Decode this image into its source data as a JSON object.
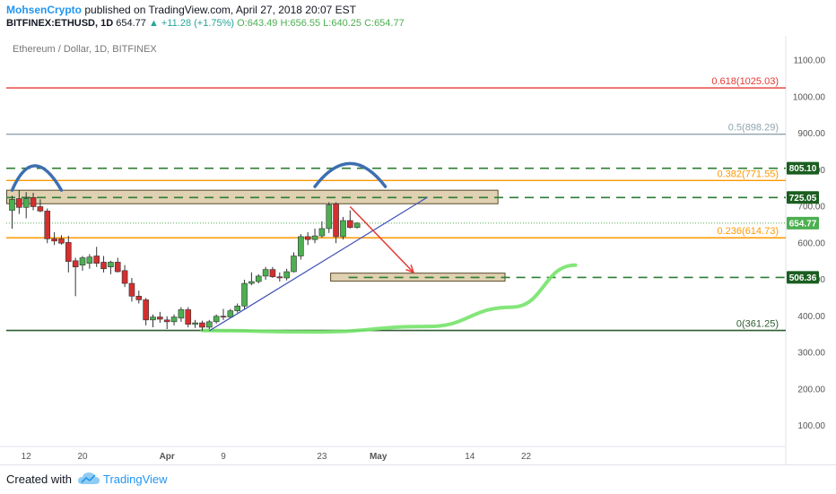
{
  "header": {
    "author": "MohsenCrypto",
    "published_text": "published on TradingView.com, April 27, 2018 20:07 EST",
    "symbol": "BITFINEX:ETHUSD, 1D",
    "last": "654.77",
    "change": "+11.28 (+1.75%)",
    "open": "O:643.49",
    "high": "H:656.55",
    "low": "L:640.25",
    "close": "C:654.77"
  },
  "chart_data": {
    "type": "candlestick",
    "title": "Ethereum / Dollar, 1D, BITFINEX",
    "y_ticks": [
      100,
      200,
      300,
      400,
      500,
      600,
      700,
      800,
      900,
      1000,
      1100
    ],
    "y_tick_labels": [
      "100.00",
      "200.00",
      "300.00",
      "400.00",
      "500.00",
      "600.00",
      "700.00",
      "800.00",
      "900.00",
      "1000.00",
      "1100.00"
    ],
    "ylim": [
      75,
      1175
    ],
    "x_range": [
      "2018-03-10",
      "2018-05-29"
    ],
    "x_ticks": [
      {
        "date": "2018-03-12",
        "label": "12"
      },
      {
        "date": "2018-03-20",
        "label": "20"
      },
      {
        "date": "2018-04-01",
        "label": "Apr"
      },
      {
        "date": "2018-04-09",
        "label": "9"
      },
      {
        "date": "2018-04-23",
        "label": "23"
      },
      {
        "date": "2018-05-01",
        "label": "May"
      },
      {
        "date": "2018-05-14",
        "label": "14"
      },
      {
        "date": "2018-05-22",
        "label": "22"
      }
    ],
    "candles": [
      {
        "d": "2018-03-10",
        "o": 690,
        "h": 730,
        "l": 640,
        "c": 720
      },
      {
        "d": "2018-03-11",
        "o": 722,
        "h": 745,
        "l": 680,
        "c": 698
      },
      {
        "d": "2018-03-12",
        "o": 698,
        "h": 740,
        "l": 668,
        "c": 722
      },
      {
        "d": "2018-03-13",
        "o": 725,
        "h": 738,
        "l": 690,
        "c": 700
      },
      {
        "d": "2018-03-14",
        "o": 700,
        "h": 720,
        "l": 685,
        "c": 688
      },
      {
        "d": "2018-03-15",
        "o": 688,
        "h": 695,
        "l": 600,
        "c": 612
      },
      {
        "d": "2018-03-16",
        "o": 612,
        "h": 630,
        "l": 595,
        "c": 606
      },
      {
        "d": "2018-03-17",
        "o": 612,
        "h": 622,
        "l": 596,
        "c": 600
      },
      {
        "d": "2018-03-18",
        "o": 602,
        "h": 620,
        "l": 520,
        "c": 550
      },
      {
        "d": "2018-03-19",
        "o": 552,
        "h": 560,
        "l": 455,
        "c": 535
      },
      {
        "d": "2018-03-20",
        "o": 540,
        "h": 565,
        "l": 525,
        "c": 560
      },
      {
        "d": "2018-03-21",
        "o": 545,
        "h": 570,
        "l": 530,
        "c": 562
      },
      {
        "d": "2018-03-22",
        "o": 565,
        "h": 590,
        "l": 535,
        "c": 545
      },
      {
        "d": "2018-03-23",
        "o": 548,
        "h": 565,
        "l": 520,
        "c": 530
      },
      {
        "d": "2018-03-24",
        "o": 535,
        "h": 552,
        "l": 515,
        "c": 548
      },
      {
        "d": "2018-03-25",
        "o": 548,
        "h": 560,
        "l": 520,
        "c": 522
      },
      {
        "d": "2018-03-26",
        "o": 525,
        "h": 540,
        "l": 480,
        "c": 490
      },
      {
        "d": "2018-03-27",
        "o": 490,
        "h": 505,
        "l": 440,
        "c": 455
      },
      {
        "d": "2018-03-28",
        "o": 455,
        "h": 470,
        "l": 435,
        "c": 445
      },
      {
        "d": "2018-03-29",
        "o": 445,
        "h": 450,
        "l": 375,
        "c": 390
      },
      {
        "d": "2018-03-30",
        "o": 390,
        "h": 405,
        "l": 370,
        "c": 398
      },
      {
        "d": "2018-03-31",
        "o": 398,
        "h": 412,
        "l": 382,
        "c": 392
      },
      {
        "d": "2018-04-01",
        "o": 390,
        "h": 400,
        "l": 365,
        "c": 385
      },
      {
        "d": "2018-04-02",
        "o": 385,
        "h": 405,
        "l": 375,
        "c": 398
      },
      {
        "d": "2018-04-03",
        "o": 395,
        "h": 425,
        "l": 385,
        "c": 418
      },
      {
        "d": "2018-04-04",
        "o": 418,
        "h": 425,
        "l": 370,
        "c": 378
      },
      {
        "d": "2018-04-05",
        "o": 378,
        "h": 390,
        "l": 368,
        "c": 382
      },
      {
        "d": "2018-04-06",
        "o": 382,
        "h": 388,
        "l": 360,
        "c": 370
      },
      {
        "d": "2018-04-07",
        "o": 370,
        "h": 390,
        "l": 365,
        "c": 385
      },
      {
        "d": "2018-04-08",
        "o": 385,
        "h": 405,
        "l": 380,
        "c": 400
      },
      {
        "d": "2018-04-09",
        "o": 400,
        "h": 420,
        "l": 390,
        "c": 398
      },
      {
        "d": "2018-04-10",
        "o": 398,
        "h": 420,
        "l": 395,
        "c": 415
      },
      {
        "d": "2018-04-11",
        "o": 415,
        "h": 435,
        "l": 410,
        "c": 428
      },
      {
        "d": "2018-04-12",
        "o": 428,
        "h": 500,
        "l": 420,
        "c": 490
      },
      {
        "d": "2018-04-13",
        "o": 490,
        "h": 520,
        "l": 485,
        "c": 495
      },
      {
        "d": "2018-04-14",
        "o": 495,
        "h": 515,
        "l": 490,
        "c": 510
      },
      {
        "d": "2018-04-15",
        "o": 510,
        "h": 535,
        "l": 500,
        "c": 528
      },
      {
        "d": "2018-04-16",
        "o": 528,
        "h": 535,
        "l": 505,
        "c": 508
      },
      {
        "d": "2018-04-17",
        "o": 508,
        "h": 520,
        "l": 495,
        "c": 505
      },
      {
        "d": "2018-04-18",
        "o": 505,
        "h": 530,
        "l": 498,
        "c": 522
      },
      {
        "d": "2018-04-19",
        "o": 522,
        "h": 575,
        "l": 520,
        "c": 565
      },
      {
        "d": "2018-04-20",
        "o": 565,
        "h": 625,
        "l": 555,
        "c": 618
      },
      {
        "d": "2018-04-21",
        "o": 618,
        "h": 630,
        "l": 595,
        "c": 610
      },
      {
        "d": "2018-04-22",
        "o": 610,
        "h": 640,
        "l": 600,
        "c": 620
      },
      {
        "d": "2018-04-23",
        "o": 620,
        "h": 660,
        "l": 615,
        "c": 640
      },
      {
        "d": "2018-04-24",
        "o": 640,
        "h": 712,
        "l": 628,
        "c": 705
      },
      {
        "d": "2018-04-25",
        "o": 708,
        "h": 712,
        "l": 600,
        "c": 618
      },
      {
        "d": "2018-04-26",
        "o": 618,
        "h": 672,
        "l": 610,
        "c": 662
      },
      {
        "d": "2018-04-27",
        "o": 662,
        "h": 690,
        "l": 640,
        "c": 643
      },
      {
        "d": "2018-04-28",
        "o": 643,
        "h": 657,
        "l": 640,
        "c": 655
      }
    ],
    "horizontal_lines": [
      {
        "label": "0.618(1025.03)",
        "value": 1025.03,
        "color": "#e53935"
      },
      {
        "label": "0.5(898.29)",
        "value": 898.29,
        "color": "#90a4ae"
      },
      {
        "label": "0.382(771.55)",
        "value": 771.55,
        "color": "#ff9800"
      },
      {
        "label": "0.236(614.73)",
        "value": 614.73,
        "color": "#ff9800"
      },
      {
        "label": "0(361.25)",
        "value": 361.25,
        "color": "#2e5d30"
      }
    ],
    "dashed_levels": [
      {
        "label": "805.10",
        "value": 805.1,
        "color": "#2e7d32"
      },
      {
        "label": "725.05",
        "value": 725.05,
        "color": "#2e7d32"
      },
      {
        "label": "506.36",
        "value": 506.36,
        "color": "#2e7d32"
      }
    ],
    "last_price": {
      "label": "654.77",
      "value": 654.77,
      "color": "#4caf50"
    },
    "zones": [
      {
        "x1": "2018-03-10",
        "x2": "2018-05-18",
        "y1": 708,
        "y2": 745
      },
      {
        "x1": "2018-04-25",
        "x2": "2018-05-19",
        "y1": 496,
        "y2": 518
      }
    ],
    "arcs": [
      {
        "x1": "2018-03-10",
        "x2": "2018-03-17",
        "peak_date": "2018-03-13",
        "base": 745,
        "peak": 812
      },
      {
        "x1": "2018-04-22",
        "x2": "2018-05-02",
        "peak_date": "2018-04-27",
        "base": 755,
        "peak": 818
      }
    ],
    "trendline": {
      "x1": "2018-04-07",
      "y1": 360,
      "x2": "2018-05-08",
      "y2": 726,
      "color": "#3f51b5"
    },
    "arrow": {
      "x1": "2018-04-27",
      "y1": 700,
      "x2": "2018-05-06",
      "y2": 520,
      "color": "#e53935"
    },
    "curve": {
      "color": "#76e36a",
      "points": [
        [
          "2018-04-06",
          361
        ],
        [
          "2018-04-22",
          357
        ],
        [
          "2018-05-08",
          372
        ],
        [
          "2018-05-20",
          425
        ],
        [
          "2018-05-29",
          540
        ]
      ]
    },
    "colors": {
      "up": "#4caf50",
      "down": "#d32f2f",
      "bg": "#ffffff"
    }
  },
  "footer": {
    "created_with": "Created with",
    "brand": "TradingView"
  }
}
